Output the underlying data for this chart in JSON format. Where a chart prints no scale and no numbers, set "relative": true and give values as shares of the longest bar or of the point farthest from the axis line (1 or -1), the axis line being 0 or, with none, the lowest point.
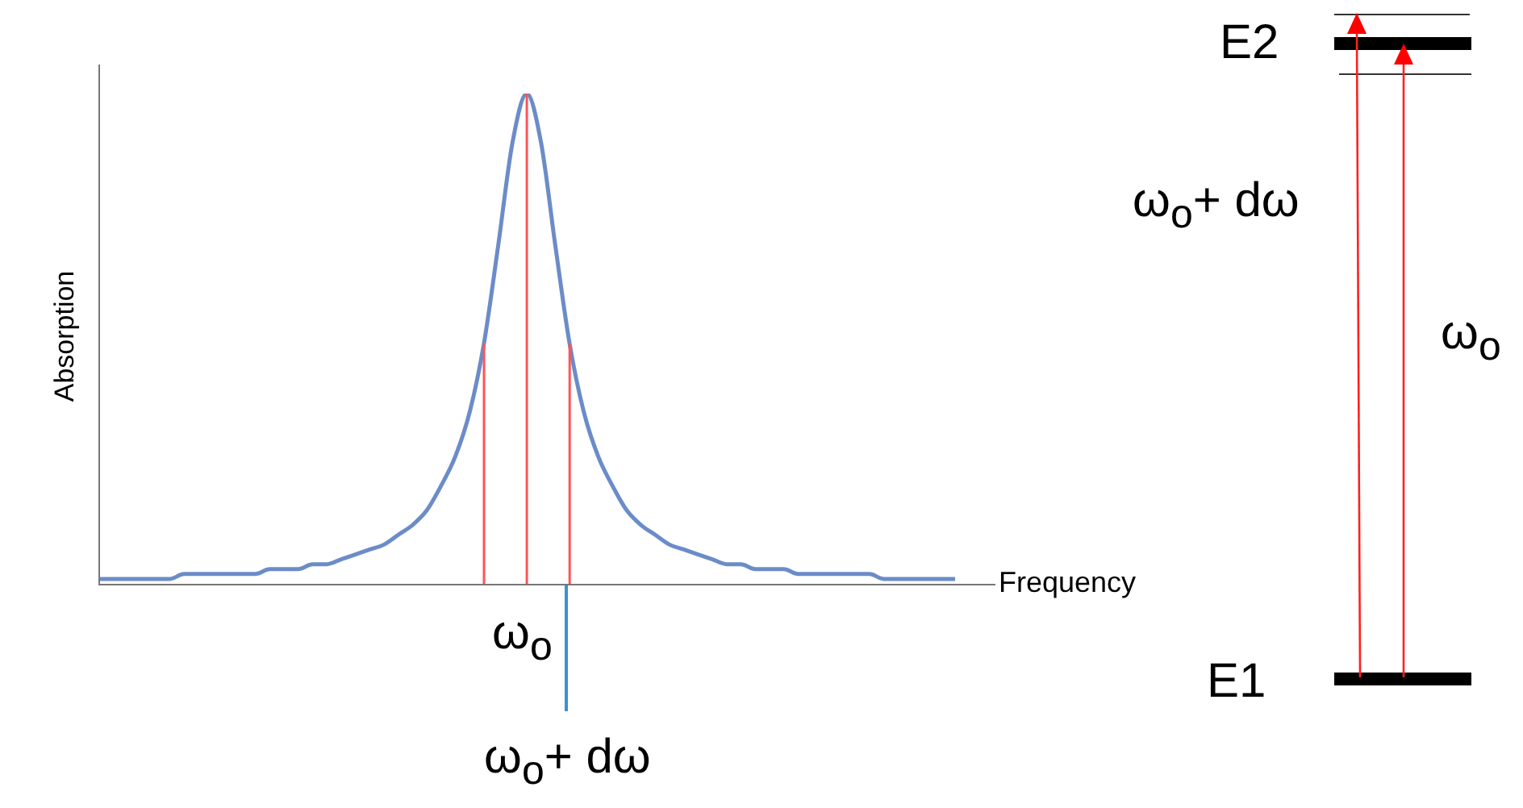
{
  "chart_data": {
    "type": "line",
    "relative": true,
    "xlabel": "Frequency",
    "ylabel": "Absorption",
    "categories": [
      null,
      null,
      null,
      null,
      null,
      null,
      null,
      null,
      null,
      null,
      null,
      null,
      null,
      null,
      null,
      null,
      null,
      null,
      null,
      null,
      null,
      null,
      null,
      null,
      null,
      null,
      null,
      null,
      null,
      null,
      null,
      null,
      null,
      null,
      null,
      null,
      null,
      null,
      null,
      null,
      null,
      null,
      null,
      null,
      null,
      null,
      null,
      null,
      null,
      null,
      null,
      null,
      null,
      null,
      null,
      null,
      null,
      null,
      null,
      null,
      null
    ],
    "series": [
      {
        "color": "#6b8cc8",
        "values": [
          0.01,
          0.01,
          0.01,
          0.01,
          0.01,
          0.01,
          0.02,
          0.02,
          0.02,
          0.02,
          0.02,
          0.02,
          0.03,
          0.03,
          0.03,
          0.04,
          0.04,
          0.05,
          0.06,
          0.07,
          0.08,
          0.1,
          0.12,
          0.15,
          0.2,
          0.26,
          0.35,
          0.49,
          0.69,
          0.9,
          1,
          0.9,
          0.69,
          0.49,
          0.35,
          0.26,
          0.2,
          0.15,
          0.12,
          0.1,
          0.08,
          0.07,
          0.06,
          0.05,
          0.04,
          0.04,
          0.03,
          0.03,
          0.03,
          0.02,
          0.02,
          0.02,
          0.02,
          0.02,
          0.02,
          0.01,
          0.01,
          0.01,
          0.01,
          0.01,
          0.01
        ]
      }
    ],
    "annotations": [
      "ω$_{o}$",
      "ω$_{o}$+ dω",
      "E2",
      "ω$_{o}$+ dω",
      "ω$_{o}$",
      "E1"
    ]
  }
}
